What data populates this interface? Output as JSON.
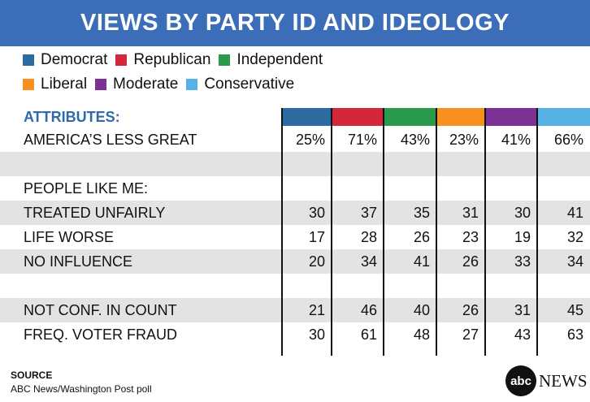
{
  "title": "VIEWS BY PARTY ID AND IDEOLOGY",
  "legend": [
    {
      "name": "Democrat",
      "color": "#2c6aa0"
    },
    {
      "name": "Republican",
      "color": "#d2283a"
    },
    {
      "name": "Independent",
      "color": "#2c9a4c"
    },
    {
      "name": "Liberal",
      "color": "#f7901e"
    },
    {
      "name": "Moderate",
      "color": "#7b3294"
    },
    {
      "name": "Conservative",
      "color": "#56b2e6"
    }
  ],
  "attributes_heading": "ATTRIBUTES:",
  "section_heading": "PEOPLE LIKE ME:",
  "source_heading": "SOURCE",
  "source_text": "ABC News/Washington Post poll",
  "logo_text": "abc",
  "logo_news": "NEWS",
  "chart_data": {
    "type": "table",
    "title": "VIEWS BY PARTY ID AND IDEOLOGY",
    "columns": [
      "Democrat",
      "Republican",
      "Independent",
      "Liberal",
      "Moderate",
      "Conservative"
    ],
    "rows": [
      {
        "label": "AMERICA’S LESS GREAT",
        "values": [
          "25%",
          "71%",
          "43%",
          "23%",
          "41%",
          "66%"
        ]
      },
      {
        "label": "TREATED UNFAIRLY",
        "values": [
          "30",
          "37",
          "35",
          "31",
          "30",
          "41"
        ]
      },
      {
        "label": "LIFE WORSE",
        "values": [
          "17",
          "28",
          "26",
          "23",
          "19",
          "32"
        ]
      },
      {
        "label": "NO INFLUENCE",
        "values": [
          "20",
          "34",
          "41",
          "26",
          "33",
          "34"
        ]
      },
      {
        "label": "NOT CONF. IN COUNT",
        "values": [
          "21",
          "46",
          "40",
          "26",
          "31",
          "45"
        ]
      },
      {
        "label": "FREQ. VOTER FRAUD",
        "values": [
          "30",
          "61",
          "48",
          "27",
          "43",
          "63"
        ]
      }
    ]
  }
}
